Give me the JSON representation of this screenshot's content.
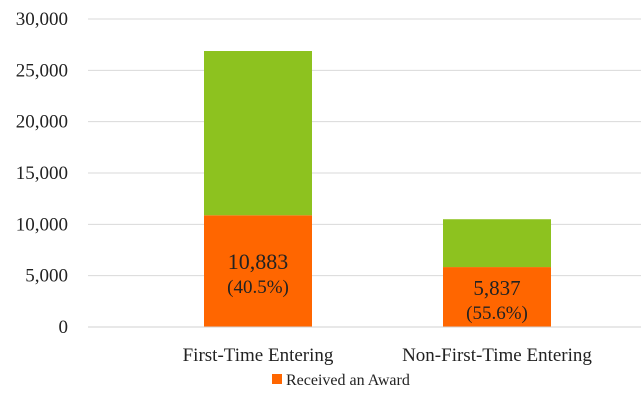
{
  "chart_data": {
    "type": "bar",
    "stacked": true,
    "categories": [
      "First-Time Entering",
      "Non-First-Time Entering"
    ],
    "series": [
      {
        "name": "Received an Award",
        "color": "#ff6600",
        "values": [
          10883,
          5837
        ],
        "labels": [
          {
            "value": "10,883",
            "pct": "(40.5%)"
          },
          {
            "value": "5,837",
            "pct": "(55.6%)"
          }
        ]
      },
      {
        "color": "#8dc21f",
        "values": [
          16000,
          4660
        ]
      }
    ],
    "ylim": [
      0,
      30000
    ],
    "yticks": [
      "0",
      "5,000",
      "10,000",
      "15,000",
      "20,000",
      "25,000",
      "30,000"
    ],
    "grid": true,
    "legend_position": "bottom"
  }
}
